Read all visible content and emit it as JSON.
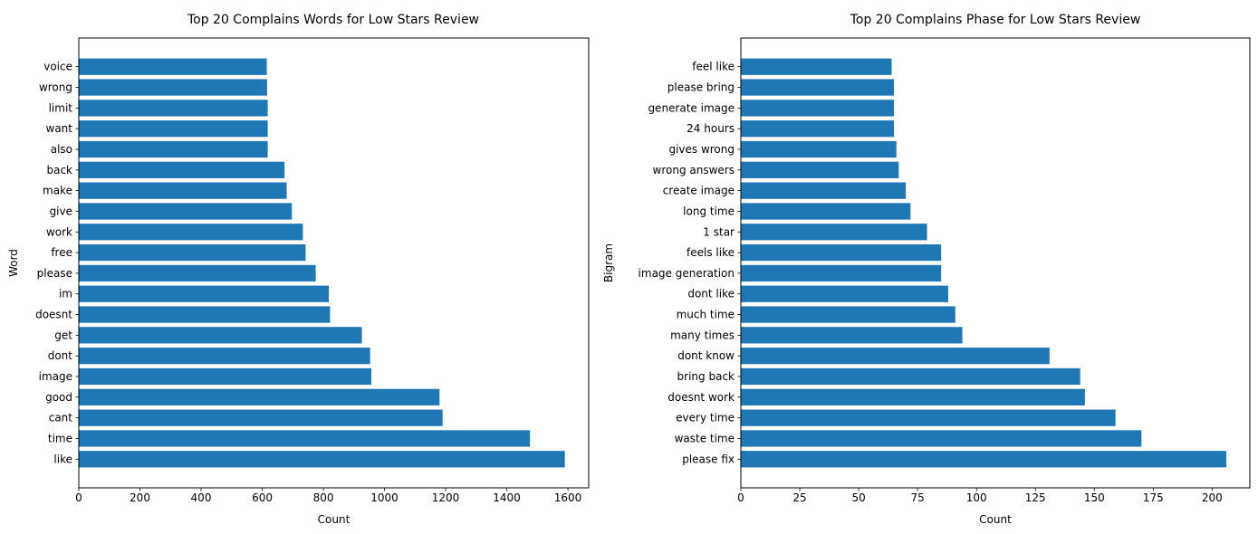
{
  "chart_data": [
    {
      "type": "bar",
      "orientation": "horizontal",
      "title": "Top 20 Complains Words for Low Stars Review",
      "xlabel": "Count",
      "ylabel": "Word",
      "xlim": [
        0,
        1668
      ],
      "xticks": [
        "0",
        "200",
        "400",
        "600",
        "800",
        "1000",
        "1200",
        "1400",
        "1600"
      ],
      "xtick_values": [
        0,
        200,
        400,
        600,
        800,
        1000,
        1200,
        1400,
        1600
      ],
      "grid": false,
      "bar_color": "#1f77b4",
      "categories": [
        "like",
        "time",
        "cant",
        "good",
        "image",
        "dont",
        "get",
        "doesnt",
        "im",
        "please",
        "free",
        "work",
        "give",
        "make",
        "back",
        "also",
        "want",
        "limit",
        "wrong",
        "voice"
      ],
      "values": [
        1590,
        1476,
        1190,
        1180,
        957,
        953,
        926,
        822,
        818,
        775,
        742,
        733,
        697,
        680,
        673,
        618,
        618,
        618,
        616,
        615
      ]
    },
    {
      "type": "bar",
      "orientation": "horizontal",
      "title": "Top 20 Complains Phase for Low Stars Review",
      "xlabel": "Count",
      "ylabel": "Bigram",
      "xlim": [
        0,
        216
      ],
      "xticks": [
        "0",
        "25",
        "50",
        "75",
        "100",
        "125",
        "150",
        "175",
        "200"
      ],
      "xtick_values": [
        0,
        25,
        50,
        75,
        100,
        125,
        150,
        175,
        200
      ],
      "grid": false,
      "bar_color": "#1f77b4",
      "categories": [
        "please fix",
        "waste time",
        "every time",
        "doesnt work",
        "bring back",
        "dont know",
        "many times",
        "much time",
        "dont like",
        "image generation",
        "feels like",
        "1 star",
        "long time",
        "create image",
        "wrong answers",
        "gives wrong",
        "24 hours",
        "generate image",
        "please bring",
        "feel like"
      ],
      "values": [
        206,
        170,
        159,
        146,
        144,
        131,
        94,
        91,
        88,
        85,
        85,
        79,
        72,
        70,
        67,
        66,
        65,
        65,
        65,
        64
      ]
    }
  ]
}
